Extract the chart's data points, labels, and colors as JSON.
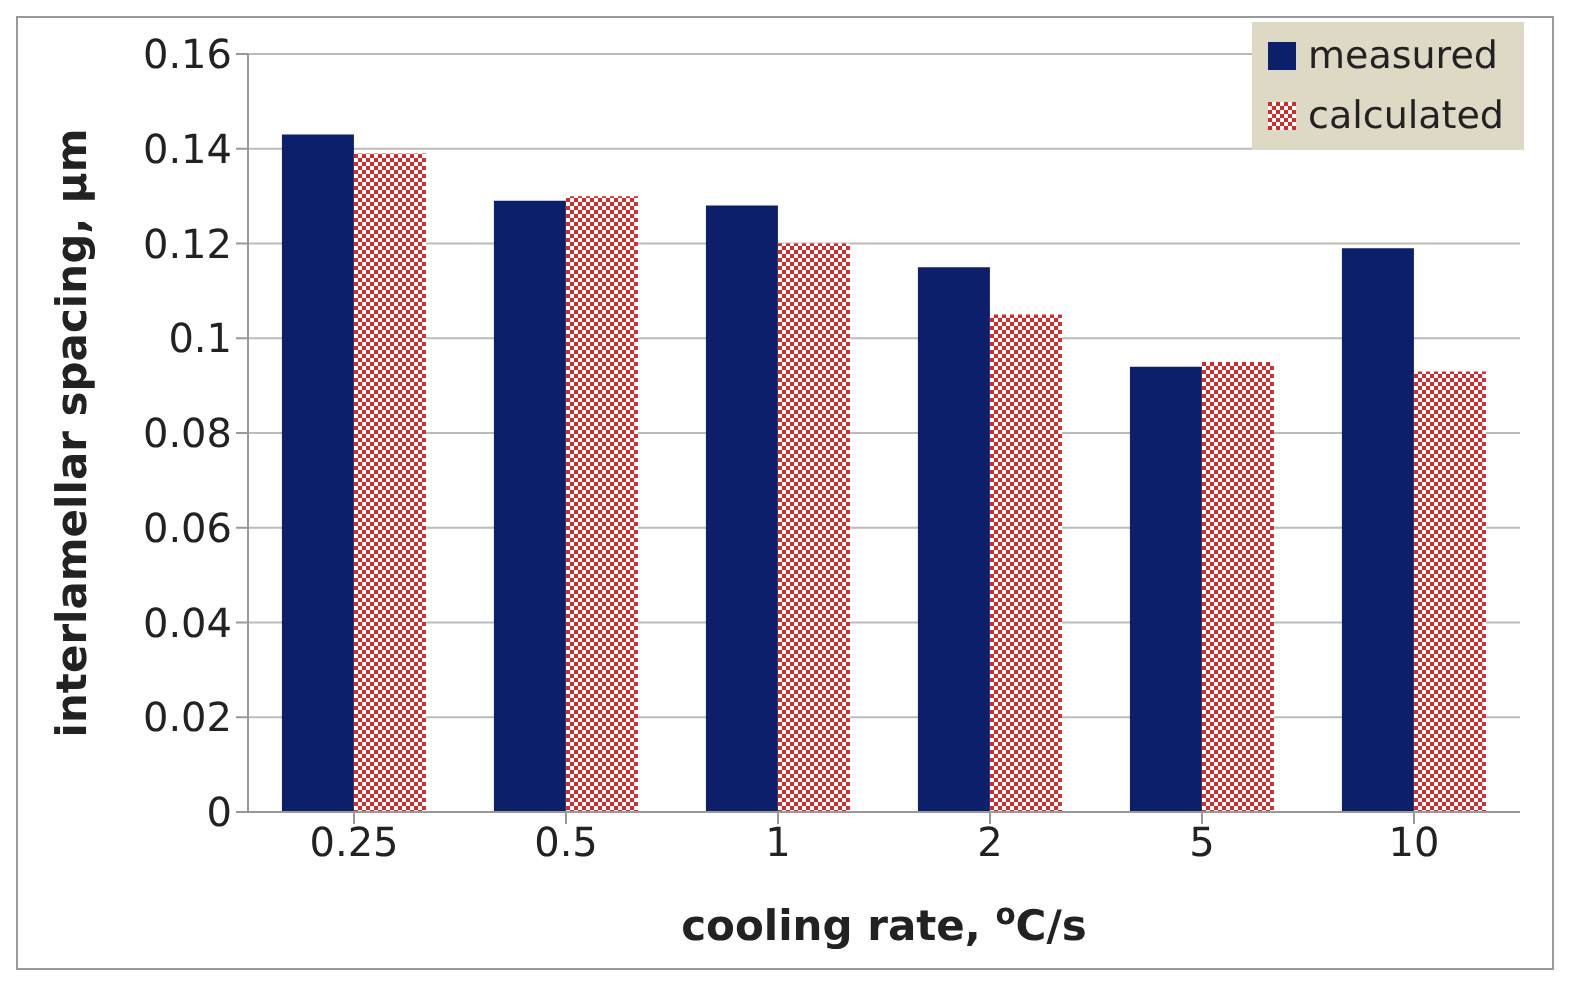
{
  "chart_data": {
    "type": "bar",
    "xlabel": "cooling rate, $^{o}$C/s",
    "ylabel": "interlamellar spacing, μm",
    "categories": [
      "0.25",
      "0.5",
      "1",
      "2",
      "5",
      "10"
    ],
    "series": [
      {
        "name": "measured",
        "color": "#0c1f6b",
        "values": [
          0.143,
          0.129,
          0.128,
          0.115,
          0.094,
          0.119
        ]
      },
      {
        "name": "calculated",
        "color": "#d42a2a",
        "values": [
          0.139,
          0.13,
          0.12,
          0.105,
          0.095,
          0.093
        ]
      }
    ],
    "ylim": [
      0,
      0.16
    ],
    "yticks": [
      0,
      0.02,
      0.04,
      0.06,
      0.08,
      0.1,
      0.12,
      0.14,
      0.16
    ],
    "grid": "y",
    "legend": "top right"
  }
}
